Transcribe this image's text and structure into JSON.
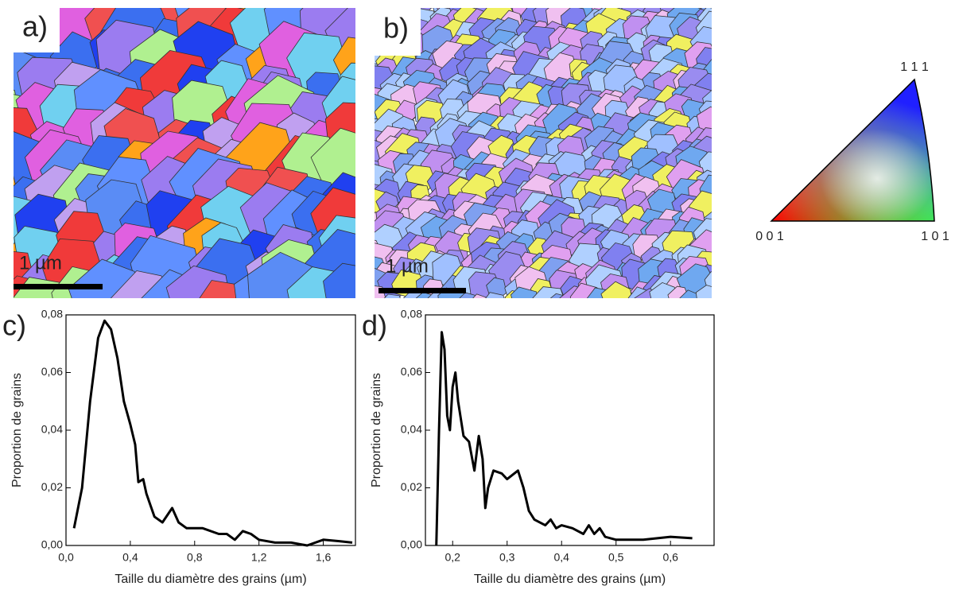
{
  "maps": [
    {
      "label": "a)",
      "scale_bar": "1 µm"
    },
    {
      "label": "b)",
      "scale_bar": "1 µm"
    }
  ],
  "color_key": {
    "top": "1 1 1",
    "left": "0 0 1",
    "right": "1 0 1"
  },
  "chart_data": [
    {
      "type": "line",
      "label": "c)",
      "x_label": "Taille du diamètre des grains (µm)",
      "y_label": "Proportion de grains",
      "color": "#000000",
      "x": [
        0.05,
        0.1,
        0.15,
        0.2,
        0.24,
        0.28,
        0.32,
        0.36,
        0.4,
        0.43,
        0.45,
        0.48,
        0.5,
        0.55,
        0.6,
        0.66,
        0.7,
        0.75,
        0.85,
        0.95,
        1.0,
        1.05,
        1.1,
        1.15,
        1.2,
        1.3,
        1.4,
        1.5,
        1.6,
        1.7,
        1.78
      ],
      "values": [
        0.006,
        0.02,
        0.05,
        0.072,
        0.078,
        0.075,
        0.065,
        0.05,
        0.042,
        0.035,
        0.022,
        0.023,
        0.018,
        0.01,
        0.008,
        0.013,
        0.008,
        0.006,
        0.006,
        0.004,
        0.004,
        0.002,
        0.005,
        0.004,
        0.002,
        0.001,
        0.001,
        0.0,
        0.002,
        0.0015,
        0.001
      ],
      "xlim": [
        0,
        1.8
      ],
      "ylim": [
        0,
        0.08
      ],
      "xticks": [
        {
          "value": 0,
          "label": "0,0"
        },
        {
          "value": 0.4,
          "label": "0,4"
        },
        {
          "value": 0.8,
          "label": "0,8"
        },
        {
          "value": 1.2,
          "label": "1,2"
        },
        {
          "value": 1.6,
          "label": "1,6"
        }
      ],
      "yticks": [
        {
          "value": 0,
          "label": "0,00"
        },
        {
          "value": 0.02,
          "label": "0,02"
        },
        {
          "value": 0.04,
          "label": "0,04"
        },
        {
          "value": 0.06,
          "label": "0,06"
        },
        {
          "value": 0.08,
          "label": "0,08"
        }
      ]
    },
    {
      "type": "line",
      "label": "d)",
      "x_label": "Taille du diamètre des grains (µm)",
      "y_label": "Proportion de grains",
      "color": "#000000",
      "x": [
        0.17,
        0.175,
        0.18,
        0.185,
        0.19,
        0.195,
        0.2,
        0.205,
        0.21,
        0.22,
        0.23,
        0.24,
        0.248,
        0.255,
        0.26,
        0.265,
        0.275,
        0.29,
        0.3,
        0.32,
        0.33,
        0.34,
        0.35,
        0.37,
        0.38,
        0.39,
        0.4,
        0.42,
        0.44,
        0.45,
        0.46,
        0.47,
        0.48,
        0.5,
        0.55,
        0.6,
        0.64
      ],
      "values": [
        0,
        0.04,
        0.074,
        0.068,
        0.045,
        0.04,
        0.055,
        0.06,
        0.05,
        0.038,
        0.036,
        0.026,
        0.038,
        0.03,
        0.013,
        0.02,
        0.026,
        0.025,
        0.023,
        0.026,
        0.02,
        0.012,
        0.009,
        0.007,
        0.009,
        0.006,
        0.007,
        0.006,
        0.004,
        0.007,
        0.004,
        0.006,
        0.003,
        0.002,
        0.002,
        0.003,
        0.0025
      ],
      "xlim": [
        0.15,
        0.68
      ],
      "ylim": [
        0,
        0.08
      ],
      "xticks": [
        {
          "value": 0.2,
          "label": "0,2"
        },
        {
          "value": 0.3,
          "label": "0,3"
        },
        {
          "value": 0.4,
          "label": "0,4"
        },
        {
          "value": 0.5,
          "label": "0,5"
        },
        {
          "value": 0.6,
          "label": "0,6"
        }
      ],
      "yticks": [
        {
          "value": 0,
          "label": "0,00"
        },
        {
          "value": 0.02,
          "label": "0,02"
        },
        {
          "value": 0.04,
          "label": "0,04"
        },
        {
          "value": 0.06,
          "label": "0,06"
        },
        {
          "value": 0.08,
          "label": "0,08"
        }
      ]
    }
  ]
}
